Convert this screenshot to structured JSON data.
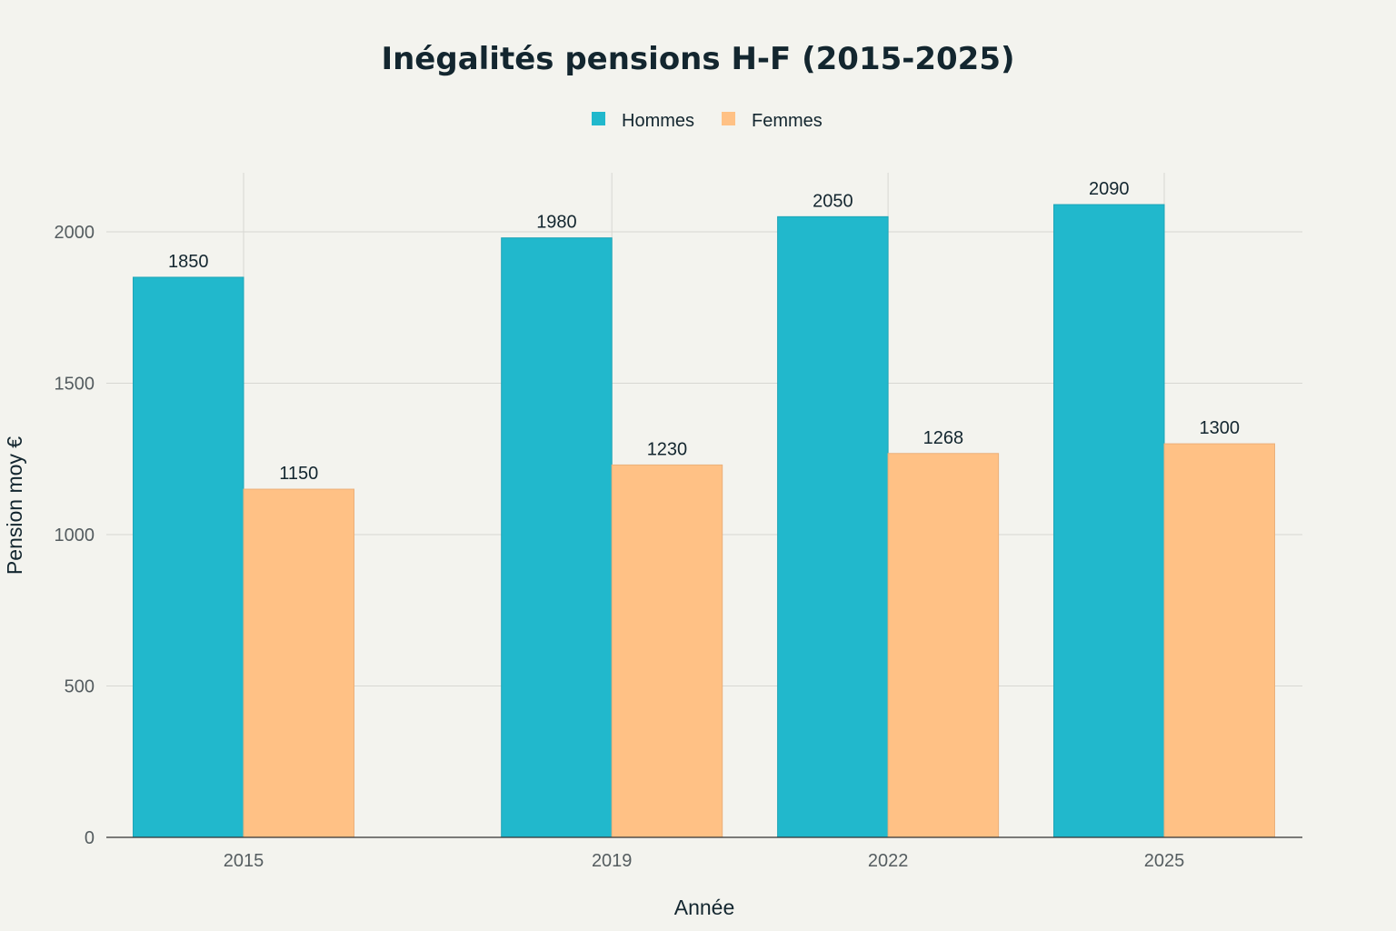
{
  "chart_data": {
    "type": "bar",
    "title": "Inégalités pensions H-F (2015-2025)",
    "xlabel": "Année",
    "ylabel": "Pension moy €",
    "categories": [
      "2015",
      "2019",
      "2022",
      "2025"
    ],
    "x_values": [
      2015,
      2019,
      2022,
      2025
    ],
    "series": [
      {
        "name": "Hommes",
        "values": [
          1850,
          1980,
          2050,
          2090
        ],
        "color": "#21b8cc"
      },
      {
        "name": "Femmes",
        "values": [
          1150,
          1230,
          1268,
          1300
        ],
        "color": "#ffc185"
      }
    ],
    "ylim": [
      0,
      2200
    ],
    "yticks": [
      0,
      500,
      1000,
      1500,
      2000
    ],
    "grid": true,
    "legend_position": "top-center"
  }
}
